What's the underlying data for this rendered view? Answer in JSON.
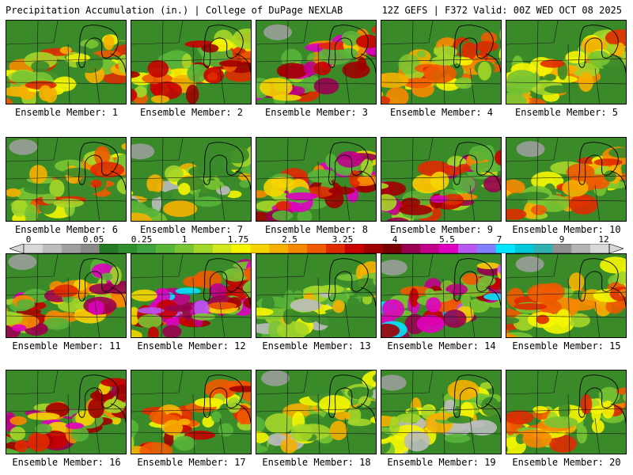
{
  "header": {
    "left": "Precipitation Accumulation (in.) | College of DuPage NEXLAB",
    "right": "12Z GEFS | F372 Valid: 00Z WED OCT 08 2025"
  },
  "colorbar": {
    "labels": [
      "0",
      "0.05",
      "0.25",
      "1",
      "1.75",
      "2.5",
      "3.25",
      "4",
      "5.5",
      "7",
      "9",
      "12"
    ],
    "colors": [
      "#d8d8d8",
      "#bdbdbd",
      "#a0a0a0",
      "#8a8a8a",
      "#257a25",
      "#2f8f2f",
      "#3fa23f",
      "#58b438",
      "#79c432",
      "#a4d628",
      "#d2e81e",
      "#f6f600",
      "#f6d400",
      "#f6b000",
      "#f68800",
      "#f05a00",
      "#e02a00",
      "#c80000",
      "#a00000",
      "#7a0000",
      "#9a0050",
      "#c0008a",
      "#e000c0",
      "#b858f0",
      "#8080ff",
      "#00e6ff",
      "#00c8d8",
      "#30b0b0",
      "#909090",
      "#b4b4b4",
      "#d8d8d8"
    ]
  },
  "panels": [
    {
      "label": "Ensemble Member: 1",
      "intensity": "moderate"
    },
    {
      "label": "Ensemble Member: 2",
      "intensity": "heavy"
    },
    {
      "label": "Ensemble Member: 3",
      "intensity": "heavy-purple"
    },
    {
      "label": "Ensemble Member: 4",
      "intensity": "moderate"
    },
    {
      "label": "Ensemble Member: 5",
      "intensity": "moderate"
    },
    {
      "label": "Ensemble Member: 6",
      "intensity": "moderate"
    },
    {
      "label": "Ensemble Member: 7",
      "intensity": "light"
    },
    {
      "label": "Ensemble Member: 8",
      "intensity": "heavy-purple"
    },
    {
      "label": "Ensemble Member: 9",
      "intensity": "heavy-purple"
    },
    {
      "label": "Ensemble Member: 10",
      "intensity": "moderate"
    },
    {
      "label": "Ensemble Member: 11",
      "intensity": "heavy-purple"
    },
    {
      "label": "Ensemble Member: 12",
      "intensity": "extreme"
    },
    {
      "label": "Ensemble Member: 13",
      "intensity": "light"
    },
    {
      "label": "Ensemble Member: 14",
      "intensity": "extreme"
    },
    {
      "label": "Ensemble Member: 15",
      "intensity": "moderate"
    },
    {
      "label": "Ensemble Member: 16",
      "intensity": "heavy-purple"
    },
    {
      "label": "Ensemble Member: 17",
      "intensity": "heavy"
    },
    {
      "label": "Ensemble Member: 18",
      "intensity": "light"
    },
    {
      "label": "Ensemble Member: 19",
      "intensity": "light"
    },
    {
      "label": "Ensemble Member: 20",
      "intensity": "moderate"
    }
  ]
}
